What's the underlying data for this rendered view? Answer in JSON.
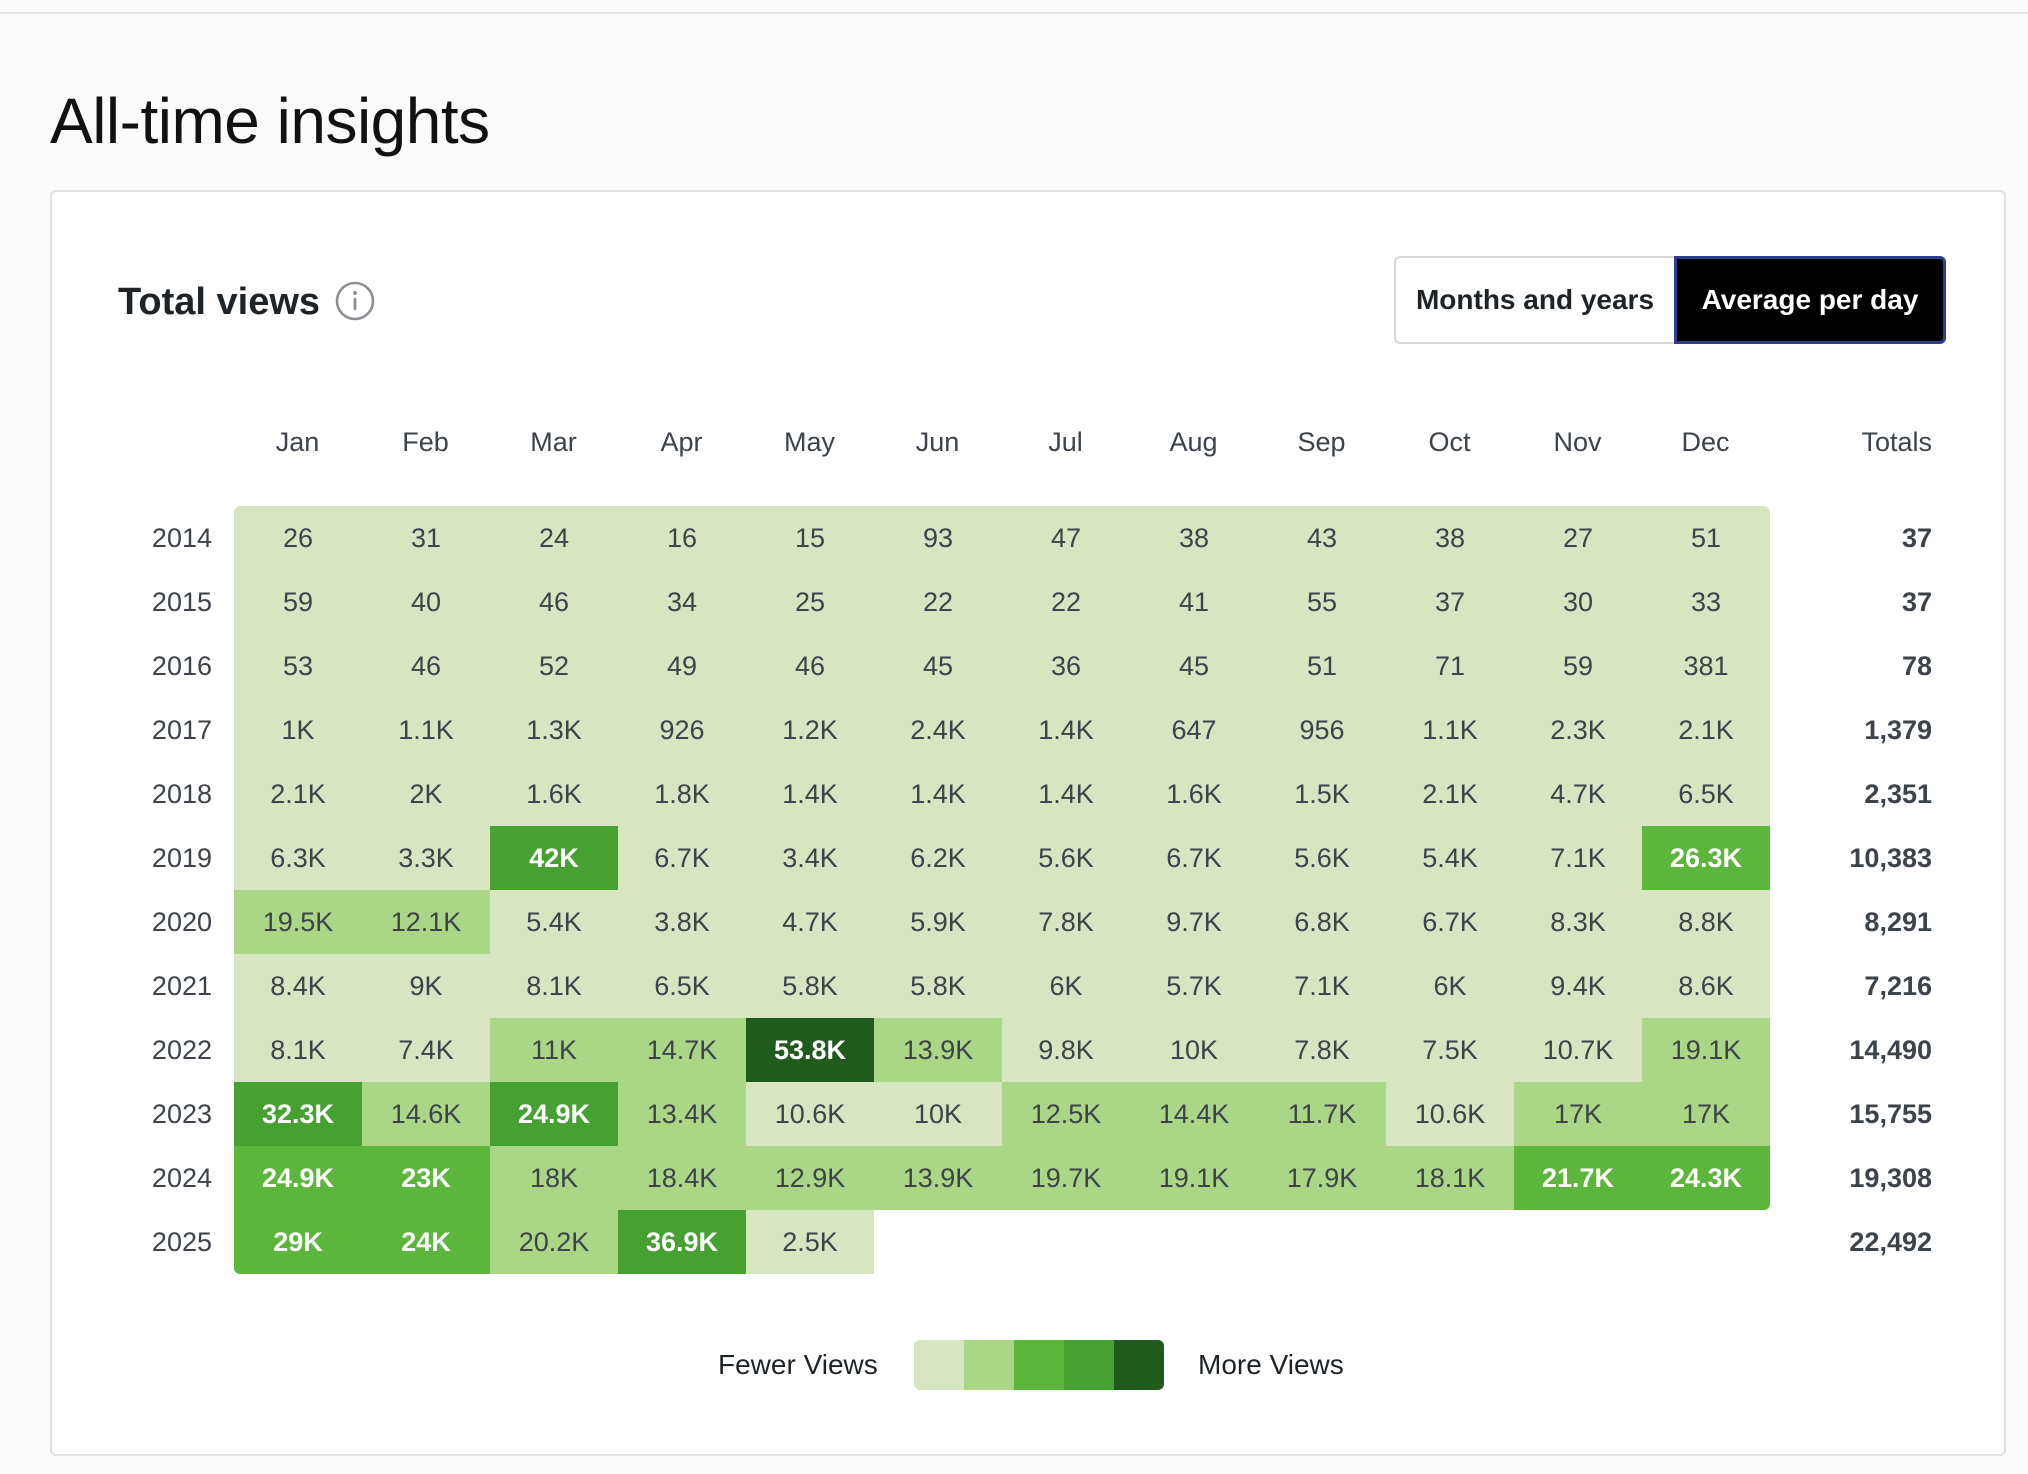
{
  "page": {
    "title": "All-time insights"
  },
  "card": {
    "title": "Total views",
    "info_icon": "info-icon",
    "toggle": [
      {
        "label": "Months and years",
        "active": false
      },
      {
        "label": "Average per day",
        "active": true
      }
    ]
  },
  "colors": {
    "levels": [
      "#d7e6c0",
      "#aad786",
      "#5cb63c",
      "#47a132",
      "#215a1d"
    ],
    "text_dark": "#3c434a",
    "text_light": "#ffffff",
    "active_button_bg": "#000000",
    "active_button_border": "#2c3f8f"
  },
  "table": {
    "months": [
      "Jan",
      "Feb",
      "Mar",
      "Apr",
      "May",
      "Jun",
      "Jul",
      "Aug",
      "Sep",
      "Oct",
      "Nov",
      "Dec"
    ],
    "totals_header": "Totals",
    "rows": [
      {
        "year": "2014",
        "values": [
          "26",
          "31",
          "24",
          "16",
          "15",
          "93",
          "47",
          "38",
          "43",
          "38",
          "27",
          "51"
        ],
        "levels": [
          0,
          0,
          0,
          0,
          0,
          0,
          0,
          0,
          0,
          0,
          0,
          0
        ],
        "total": "37"
      },
      {
        "year": "2015",
        "values": [
          "59",
          "40",
          "46",
          "34",
          "25",
          "22",
          "22",
          "41",
          "55",
          "37",
          "30",
          "33"
        ],
        "levels": [
          0,
          0,
          0,
          0,
          0,
          0,
          0,
          0,
          0,
          0,
          0,
          0
        ],
        "total": "37"
      },
      {
        "year": "2016",
        "values": [
          "53",
          "46",
          "52",
          "49",
          "46",
          "45",
          "36",
          "45",
          "51",
          "71",
          "59",
          "381"
        ],
        "levels": [
          0,
          0,
          0,
          0,
          0,
          0,
          0,
          0,
          0,
          0,
          0,
          0
        ],
        "total": "78"
      },
      {
        "year": "2017",
        "values": [
          "1K",
          "1.1K",
          "1.3K",
          "926",
          "1.2K",
          "2.4K",
          "1.4K",
          "647",
          "956",
          "1.1K",
          "2.3K",
          "2.1K"
        ],
        "levels": [
          0,
          0,
          0,
          0,
          0,
          0,
          0,
          0,
          0,
          0,
          0,
          0
        ],
        "total": "1,379"
      },
      {
        "year": "2018",
        "values": [
          "2.1K",
          "2K",
          "1.6K",
          "1.8K",
          "1.4K",
          "1.4K",
          "1.4K",
          "1.6K",
          "1.5K",
          "2.1K",
          "4.7K",
          "6.5K"
        ],
        "levels": [
          0,
          0,
          0,
          0,
          0,
          0,
          0,
          0,
          0,
          0,
          0,
          0
        ],
        "total": "2,351"
      },
      {
        "year": "2019",
        "values": [
          "6.3K",
          "3.3K",
          "42K",
          "6.7K",
          "3.4K",
          "6.2K",
          "5.6K",
          "6.7K",
          "5.6K",
          "5.4K",
          "7.1K",
          "26.3K"
        ],
        "levels": [
          0,
          0,
          3,
          0,
          0,
          0,
          0,
          0,
          0,
          0,
          0,
          2
        ],
        "total": "10,383"
      },
      {
        "year": "2020",
        "values": [
          "19.5K",
          "12.1K",
          "5.4K",
          "3.8K",
          "4.7K",
          "5.9K",
          "7.8K",
          "9.7K",
          "6.8K",
          "6.7K",
          "8.3K",
          "8.8K"
        ],
        "levels": [
          1,
          1,
          0,
          0,
          0,
          0,
          0,
          0,
          0,
          0,
          0,
          0
        ],
        "total": "8,291"
      },
      {
        "year": "2021",
        "values": [
          "8.4K",
          "9K",
          "8.1K",
          "6.5K",
          "5.8K",
          "5.8K",
          "6K",
          "5.7K",
          "7.1K",
          "6K",
          "9.4K",
          "8.6K"
        ],
        "levels": [
          0,
          0,
          0,
          0,
          0,
          0,
          0,
          0,
          0,
          0,
          0,
          0
        ],
        "total": "7,216"
      },
      {
        "year": "2022",
        "values": [
          "8.1K",
          "7.4K",
          "11K",
          "14.7K",
          "53.8K",
          "13.9K",
          "9.8K",
          "10K",
          "7.8K",
          "7.5K",
          "10.7K",
          "19.1K"
        ],
        "levels": [
          0,
          0,
          1,
          1,
          4,
          1,
          0,
          0,
          0,
          0,
          0,
          1
        ],
        "total": "14,490"
      },
      {
        "year": "2023",
        "values": [
          "32.3K",
          "14.6K",
          "24.9K",
          "13.4K",
          "10.6K",
          "10K",
          "12.5K",
          "14.4K",
          "11.7K",
          "10.6K",
          "17K",
          "17K"
        ],
        "levels": [
          3,
          1,
          3,
          1,
          0,
          0,
          1,
          1,
          1,
          0,
          1,
          1
        ],
        "total": "15,755"
      },
      {
        "year": "2024",
        "values": [
          "24.9K",
          "23K",
          "18K",
          "18.4K",
          "12.9K",
          "13.9K",
          "19.7K",
          "19.1K",
          "17.9K",
          "18.1K",
          "21.7K",
          "24.3K"
        ],
        "levels": [
          2,
          2,
          1,
          1,
          1,
          1,
          1,
          1,
          1,
          1,
          2,
          2
        ],
        "total": "19,308"
      },
      {
        "year": "2025",
        "values": [
          "29K",
          "24K",
          "20.2K",
          "36.9K",
          "2.5K"
        ],
        "levels": [
          2,
          2,
          1,
          3,
          0
        ],
        "total": "22,492"
      }
    ]
  },
  "legend": {
    "fewer": "Fewer Views",
    "more": "More Views"
  }
}
